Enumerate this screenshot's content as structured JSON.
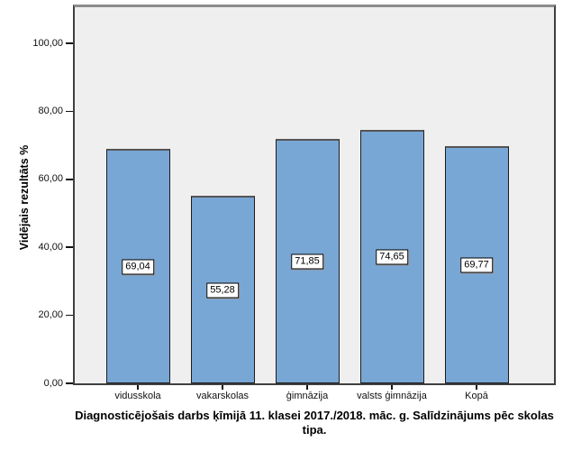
{
  "chart_data": {
    "type": "bar",
    "title": "Diagnosticējošais darbs ķīmijā 11. klasei 2017./2018. māc. g. Salīdzinājums pēc skolas tipa.",
    "ylabel": "Vidējais rezultāts %",
    "xlabel": "",
    "categories": [
      "vidusskola",
      "vakarskolas",
      "ģimnāzija",
      "valsts ģimnāzija",
      "Kopā"
    ],
    "values": [
      69.04,
      55.28,
      71.85,
      74.65,
      69.77
    ],
    "value_labels": [
      "69,04",
      "55,28",
      "71,85",
      "74,65",
      "69,77"
    ],
    "ylim": [
      0,
      111
    ],
    "yticks": {
      "values": [
        0,
        20,
        40,
        60,
        80,
        100
      ],
      "labels": [
        "0,00",
        "20,00",
        "40,00",
        "60,00",
        "80,00",
        "100,00"
      ]
    },
    "grid": false,
    "legend": "none",
    "colors": {
      "bar_fill": "#79a7d5",
      "bar_border": "#1c1c1c",
      "plot_background": "#efefef",
      "frame": "#3f3f3f",
      "value_label_background": "#ffffff",
      "text": "#000000"
    }
  }
}
